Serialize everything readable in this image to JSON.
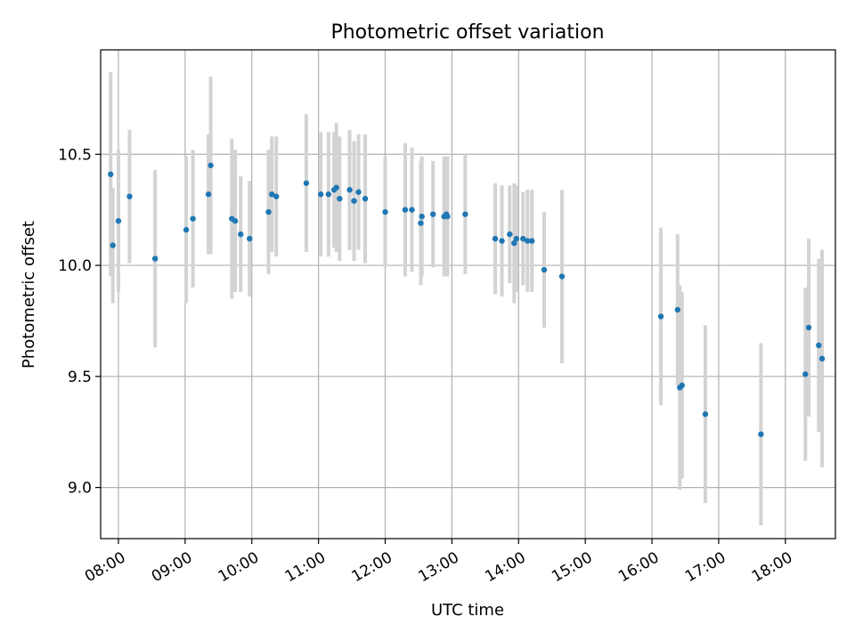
{
  "chart_data": {
    "type": "scatter",
    "title": "Photometric offset variation",
    "xlabel": "UTC time",
    "ylabel": "Photometric offset",
    "x_tick_labels": [
      "08:00",
      "09:00",
      "10:00",
      "11:00",
      "12:00",
      "13:00",
      "14:00",
      "15:00",
      "16:00",
      "17:00",
      "18:00"
    ],
    "y_tick_labels": [
      "9.0",
      "9.5",
      "10.0",
      "10.5"
    ],
    "y_ticks": [
      9.0,
      9.5,
      10.0,
      10.5
    ],
    "xlim": [
      "07:44",
      "18:45"
    ],
    "ylim": [
      8.77,
      10.97
    ],
    "grid": true,
    "colors": {
      "points": "#1f77b4",
      "error_bars": "#d3d3d3",
      "grid": "#b0b0b0"
    },
    "series": [
      {
        "x": [
          "07:53",
          "07:55",
          "08:00",
          "08:10",
          "08:33",
          "09:01",
          "09:07",
          "09:21",
          "09:23",
          "09:42",
          "09:45",
          "09:50",
          "09:58",
          "10:15",
          "10:18",
          "10:22",
          "10:49",
          "11:02",
          "11:09",
          "11:14",
          "11:16",
          "11:19",
          "11:28",
          "11:32",
          "11:36",
          "11:42",
          "12:00",
          "12:18",
          "12:24",
          "12:32",
          "12:33",
          "12:43",
          "12:53",
          "12:55",
          "12:56",
          "13:12",
          "13:39",
          "13:45",
          "13:52",
          "13:56",
          "13:58",
          "14:04",
          "14:08",
          "14:12",
          "14:23",
          "14:39",
          "16:08",
          "16:23",
          "16:25",
          "16:27",
          "16:48",
          "17:38",
          "18:18",
          "18:21",
          "18:30",
          "18:33"
        ],
        "y": [
          10.41,
          10.09,
          10.2,
          10.31,
          10.03,
          10.16,
          10.21,
          10.32,
          10.45,
          10.21,
          10.2,
          10.14,
          10.12,
          10.24,
          10.32,
          10.31,
          10.37,
          10.32,
          10.32,
          10.34,
          10.35,
          10.3,
          10.34,
          10.29,
          10.33,
          10.3,
          10.24,
          10.25,
          10.25,
          10.19,
          10.22,
          10.23,
          10.22,
          10.23,
          10.22,
          10.23,
          10.12,
          10.11,
          10.14,
          10.1,
          10.12,
          10.12,
          10.11,
          10.11,
          9.98,
          9.95,
          9.77,
          9.8,
          9.45,
          9.46,
          9.33,
          9.24,
          9.51,
          9.72,
          9.64,
          9.58
        ],
        "yerr": [
          0.46,
          0.26,
          0.32,
          0.3,
          0.4,
          0.33,
          0.31,
          0.27,
          0.4,
          0.36,
          0.32,
          0.26,
          0.26,
          0.28,
          0.26,
          0.27,
          0.31,
          0.28,
          0.28,
          0.26,
          0.29,
          0.28,
          0.27,
          0.27,
          0.26,
          0.29,
          0.25,
          0.3,
          0.28,
          0.28,
          0.27,
          0.24,
          0.27,
          0.26,
          0.27,
          0.27,
          0.25,
          0.25,
          0.22,
          0.27,
          0.24,
          0.21,
          0.23,
          0.23,
          0.26,
          0.39,
          0.4,
          0.34,
          0.46,
          0.42,
          0.4,
          0.41,
          0.39,
          0.4,
          0.39,
          0.49
        ]
      }
    ]
  }
}
